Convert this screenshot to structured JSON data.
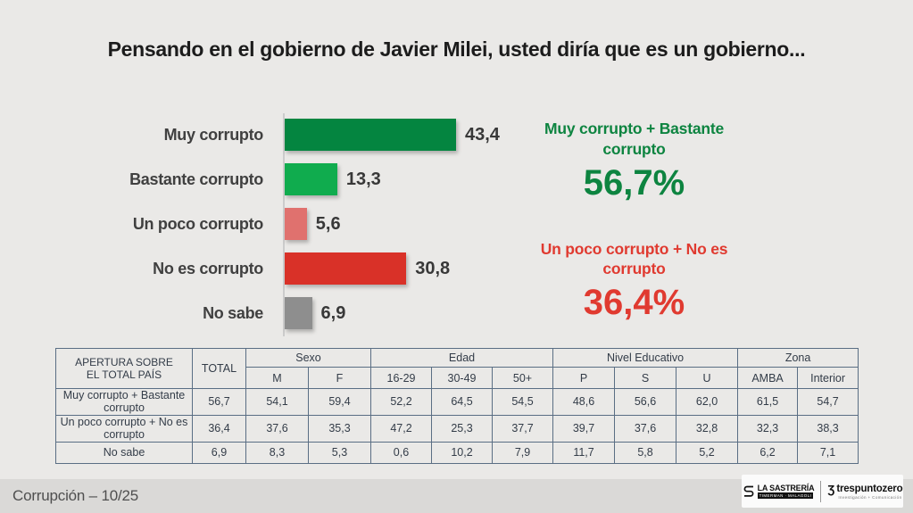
{
  "title": "Pensando en el gobierno de Javier Milei, usted diría que es un gobierno...",
  "chart_data": {
    "type": "bar",
    "orientation": "horizontal",
    "categories": [
      "Muy corrupto",
      "Bastante corrupto",
      "Un poco corrupto",
      "No es corrupto",
      "No sabe"
    ],
    "values": [
      43.4,
      13.3,
      5.6,
      30.8,
      6.9
    ],
    "value_labels": [
      "43,4",
      "13,3",
      "5,6",
      "30,8",
      "6,9"
    ],
    "bar_colors": [
      "#048540",
      "#10ac4e",
      "#e0716e",
      "#d93128",
      "#8e8e8e"
    ],
    "xlim": [
      0,
      50
    ],
    "title": "Pensando en el gobierno de Javier Milei, usted diría que es un gobierno...",
    "legend": "none",
    "grid": "off"
  },
  "aggregates": [
    {
      "label": "Muy corrupto  + Bastante corrupto",
      "value": "56,7%",
      "color": "#0d8440"
    },
    {
      "label": "Un poco corrupto + No es corrupto",
      "value": "36,4%",
      "color": "#e03a30"
    }
  ],
  "table": {
    "corner_header": "APERTURA SOBRE\nEL TOTAL PAÍS",
    "total_header": "TOTAL",
    "groups": [
      {
        "label": "Sexo",
        "cols": [
          "M",
          "F"
        ]
      },
      {
        "label": "Edad",
        "cols": [
          "16-29",
          "30-49",
          "50+"
        ]
      },
      {
        "label": "Nivel Educativo",
        "cols": [
          "P",
          "S",
          "U"
        ]
      },
      {
        "label": "Zona",
        "cols": [
          "AMBA",
          "Interior"
        ]
      }
    ],
    "rows": [
      {
        "label": "Muy corrupto  + Bastante corrupto",
        "values": [
          "56,7",
          "54,1",
          "59,4",
          "52,2",
          "64,5",
          "54,5",
          "48,6",
          "56,6",
          "62,0",
          "61,5",
          "54,7"
        ]
      },
      {
        "label": "Un poco corrupto + No es corrupto",
        "values": [
          "36,4",
          "37,6",
          "35,3",
          "47,2",
          "25,3",
          "37,7",
          "39,7",
          "37,6",
          "32,8",
          "32,3",
          "38,3"
        ]
      },
      {
        "label": "No sabe",
        "values": [
          "6,9",
          "8,3",
          "5,3",
          "0,6",
          "10,2",
          "7,9",
          "11,7",
          "5,8",
          "5,2",
          "6,2",
          "7,1"
        ]
      }
    ]
  },
  "footer": {
    "caption": "Corrupción – 10/25",
    "logo1_title": "LA SASTRERÍA",
    "logo1_subtitle": "TIMERMAN · MALAGOLI",
    "logo2_icon": "Ʒ",
    "logo2_title": "trespuntozero",
    "logo2_subtitle": "Investigación + Comunicación"
  }
}
